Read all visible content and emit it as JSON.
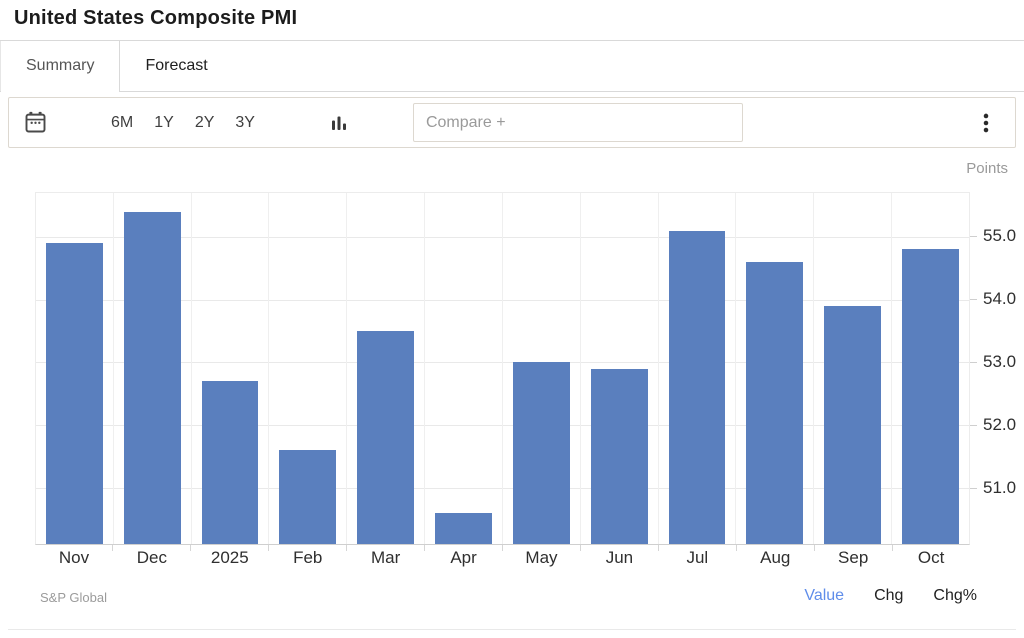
{
  "page_title": "United States Composite PMI",
  "tabs": {
    "summary": "Summary",
    "forecast": "Forecast"
  },
  "toolbar": {
    "ranges": [
      "6M",
      "1Y",
      "2Y",
      "3Y"
    ],
    "compare_placeholder": "Compare +",
    "icons": {
      "calendar": "calendar-icon",
      "chart_type": "bar-chart-icon",
      "menu": "kebab-menu-icon"
    }
  },
  "chart_data": {
    "type": "bar",
    "title": "United States Composite PMI",
    "categories": [
      "Nov",
      "Dec",
      "2025",
      "Feb",
      "Mar",
      "Apr",
      "May",
      "Jun",
      "Jul",
      "Aug",
      "Sep",
      "Oct"
    ],
    "values": [
      54.9,
      55.4,
      52.7,
      51.6,
      53.5,
      50.6,
      53.0,
      52.9,
      55.1,
      54.6,
      53.9,
      54.8
    ],
    "xlabel": "",
    "ylabel": "Points",
    "ylim": [
      50.1,
      55.7
    ],
    "yticks": [
      51.0,
      52.0,
      53.0,
      54.0,
      55.0
    ],
    "ytick_labels": [
      "51.0",
      "52.0",
      "53.0",
      "54.0",
      "55.0"
    ],
    "bar_color": "#5a7fbe",
    "grid": true,
    "legend_position": "none"
  },
  "footer": {
    "source": "S&P Global",
    "modes": [
      {
        "label": "Value",
        "active": true
      },
      {
        "label": "Chg",
        "active": false
      },
      {
        "label": "Chg%",
        "active": false
      }
    ]
  },
  "colors": {
    "bar": "#5a7fbe",
    "active_mode": "#5f8dea",
    "border": "#ddd8d0"
  }
}
